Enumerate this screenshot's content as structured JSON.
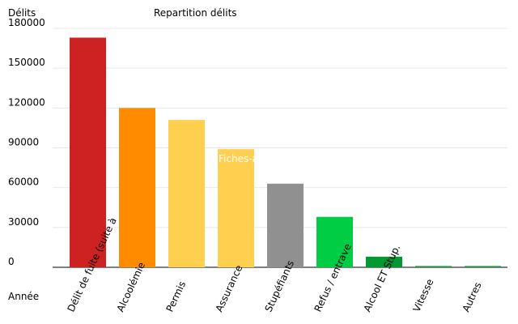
{
  "chart_data": {
    "type": "bar",
    "title": "Repartition délits",
    "y_label": "Délits",
    "x_label": "Année",
    "watermark": "Fiches-auto.fr",
    "categories": [
      "Délit de fuite (suite à",
      "Alcoolémie",
      "Permis",
      "Assurance",
      "Stupéfiants",
      "Refus / entrave",
      "Alcool ET Stup.",
      "Vitesse",
      "Autres"
    ],
    "values": [
      173000,
      120000,
      111000,
      89000,
      63000,
      38000,
      8000,
      1000,
      1000
    ],
    "colors": [
      "#cc2222",
      "#ff8c00",
      "#ffd050",
      "#ffd050",
      "#909090",
      "#00cc44",
      "#009933",
      "#229944",
      "#229944"
    ],
    "ylim": [
      0,
      180000
    ],
    "yticks": [
      0,
      30000,
      60000,
      90000,
      120000,
      150000,
      180000
    ],
    "grid": true
  }
}
